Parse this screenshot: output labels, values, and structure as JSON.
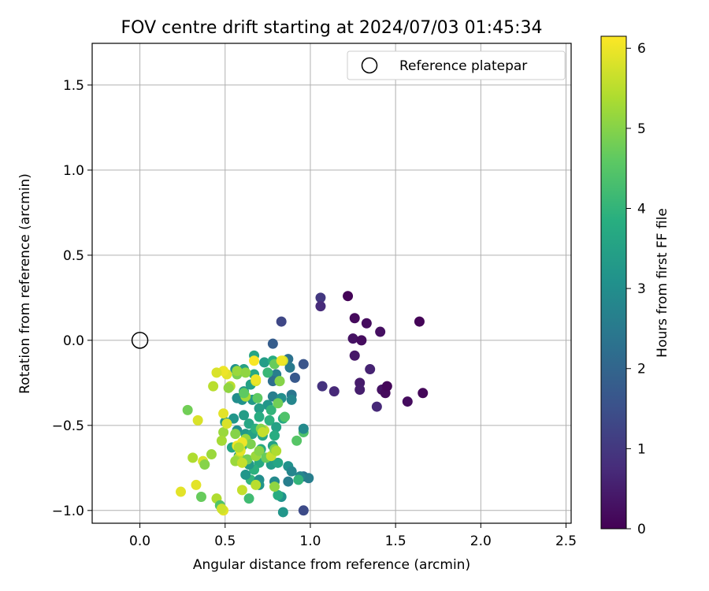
{
  "chart_data": {
    "type": "scatter",
    "title": "FOV centre drift starting at 2024/07/03 01:45:34",
    "xlabel": "Angular distance from reference (arcmin)",
    "ylabel": "Rotation from reference (arcmin)",
    "xlim": [
      -0.28,
      2.53
    ],
    "ylim": [
      -1.075,
      1.745
    ],
    "xticks": [
      0.0,
      0.5,
      1.0,
      1.5,
      2.0,
      2.5
    ],
    "xtick_labels": [
      "0.0",
      "0.5",
      "1.0",
      "1.5",
      "2.0",
      "2.5"
    ],
    "yticks": [
      -1.0,
      -0.5,
      0.0,
      0.5,
      1.0,
      1.5
    ],
    "ytick_labels": [
      "−1.0",
      "−0.5",
      "0.0",
      "0.5",
      "1.0",
      "1.5"
    ],
    "grid": true,
    "legend": {
      "placement": "top-right",
      "entries": [
        "Reference platepar"
      ]
    },
    "reference": {
      "x": 0.0,
      "y": 0.0
    },
    "colorbar": {
      "label": "Hours from first FF file",
      "colormap": "viridis",
      "range": [
        0,
        6.15
      ],
      "ticks": [
        0,
        1,
        2,
        3,
        4,
        5,
        6
      ],
      "tick_labels": [
        "0",
        "1",
        "2",
        "3",
        "4",
        "5",
        "6"
      ]
    },
    "points": [
      [
        1.22,
        0.26,
        0.05
      ],
      [
        1.26,
        0.13,
        0.15
      ],
      [
        1.33,
        0.1,
        0.2
      ],
      [
        1.64,
        0.11,
        0.05
      ],
      [
        1.41,
        0.05,
        0.25
      ],
      [
        1.25,
        0.01,
        0.3
      ],
      [
        1.3,
        0.0,
        0.2
      ],
      [
        1.26,
        -0.09,
        0.4
      ],
      [
        1.35,
        -0.17,
        0.6
      ],
      [
        1.29,
        -0.25,
        0.45
      ],
      [
        1.29,
        -0.29,
        0.5
      ],
      [
        1.42,
        -0.29,
        0.3
      ],
      [
        1.44,
        -0.31,
        0.15
      ],
      [
        1.45,
        -0.27,
        0.1
      ],
      [
        1.66,
        -0.31,
        0.1
      ],
      [
        1.57,
        -0.36,
        0.2
      ],
      [
        1.39,
        -0.39,
        0.7
      ],
      [
        1.14,
        -0.3,
        0.7
      ],
      [
        1.07,
        -0.27,
        0.9
      ],
      [
        1.06,
        0.25,
        1.0
      ],
      [
        1.06,
        0.2,
        0.75
      ],
      [
        0.83,
        0.11,
        1.3
      ],
      [
        0.78,
        -0.02,
        1.8
      ],
      [
        0.96,
        -0.14,
        1.6
      ],
      [
        0.87,
        -0.11,
        2.3
      ],
      [
        0.91,
        -0.22,
        1.7
      ],
      [
        0.88,
        -0.16,
        2.5
      ],
      [
        0.8,
        -0.2,
        2.6
      ],
      [
        0.78,
        -0.24,
        2.2
      ],
      [
        0.89,
        -0.32,
        2.4
      ],
      [
        0.89,
        -0.35,
        2.8
      ],
      [
        0.78,
        -0.33,
        2.6
      ],
      [
        0.83,
        -0.34,
        3.0
      ],
      [
        0.75,
        -0.38,
        3.2
      ],
      [
        0.7,
        -0.4,
        3.4
      ],
      [
        0.66,
        -0.35,
        3.3
      ],
      [
        0.6,
        -0.35,
        3.1
      ],
      [
        0.57,
        -0.34,
        3.0
      ],
      [
        0.65,
        -0.26,
        3.5
      ],
      [
        0.61,
        -0.3,
        3.3
      ],
      [
        0.56,
        -0.17,
        3.1
      ],
      [
        0.61,
        -0.17,
        3.5
      ],
      [
        0.67,
        -0.09,
        3.6
      ],
      [
        0.67,
        -0.2,
        3.7
      ],
      [
        0.73,
        -0.13,
        3.4
      ],
      [
        0.78,
        -0.12,
        3.8
      ],
      [
        0.75,
        -0.19,
        4.1
      ],
      [
        0.82,
        -0.24,
        4.4
      ],
      [
        0.77,
        -0.41,
        4.0
      ],
      [
        0.76,
        -0.47,
        3.9
      ],
      [
        0.84,
        -0.46,
        3.7
      ],
      [
        0.8,
        -0.51,
        3.5
      ],
      [
        0.7,
        -0.45,
        3.8
      ],
      [
        0.64,
        -0.49,
        3.6
      ],
      [
        0.61,
        -0.44,
        3.4
      ],
      [
        0.55,
        -0.46,
        3.2
      ],
      [
        0.57,
        -0.53,
        3.0
      ],
      [
        0.5,
        -0.48,
        3.3
      ],
      [
        0.62,
        -0.55,
        3.3
      ],
      [
        0.66,
        -0.55,
        3.5
      ],
      [
        0.68,
        -0.52,
        3.9
      ],
      [
        0.72,
        -0.56,
        3.6
      ],
      [
        0.79,
        -0.56,
        3.8
      ],
      [
        0.78,
        -0.62,
        3.5
      ],
      [
        0.71,
        -0.64,
        3.7
      ],
      [
        0.7,
        -0.72,
        3.7
      ],
      [
        0.67,
        -0.76,
        3.9
      ],
      [
        0.65,
        -0.82,
        4.0
      ],
      [
        0.62,
        -0.79,
        3.2
      ],
      [
        0.64,
        -0.73,
        3.3
      ],
      [
        0.58,
        -0.68,
        3.3
      ],
      [
        0.54,
        -0.63,
        3.6
      ],
      [
        0.6,
        -0.62,
        3.7
      ],
      [
        0.77,
        -0.73,
        3.4
      ],
      [
        0.81,
        -0.72,
        3.6
      ],
      [
        0.87,
        -0.74,
        3.1
      ],
      [
        0.89,
        -0.77,
        2.8
      ],
      [
        0.96,
        -0.8,
        2.3
      ],
      [
        0.99,
        -0.81,
        2.6
      ],
      [
        0.94,
        -0.8,
        2.8
      ],
      [
        0.87,
        -0.83,
        2.6
      ],
      [
        0.79,
        -0.83,
        2.9
      ],
      [
        0.7,
        -0.82,
        3.0
      ],
      [
        0.7,
        -0.85,
        3.2
      ],
      [
        0.83,
        -0.92,
        3.1
      ],
      [
        0.81,
        -0.91,
        3.8
      ],
      [
        0.96,
        -1.0,
        1.4
      ],
      [
        0.84,
        -1.01,
        3.2
      ],
      [
        0.93,
        -0.82,
        4.0
      ],
      [
        0.92,
        -0.59,
        4.5
      ],
      [
        0.96,
        -0.54,
        4.4
      ],
      [
        0.96,
        -0.52,
        2.9
      ],
      [
        0.85,
        -0.45,
        4.4
      ],
      [
        0.81,
        -0.37,
        4.8
      ],
      [
        0.82,
        -0.24,
        5.0
      ],
      [
        0.84,
        -0.12,
        5.7
      ],
      [
        0.79,
        -0.14,
        4.7
      ],
      [
        0.68,
        -0.24,
        5.8
      ],
      [
        0.69,
        -0.34,
        4.6
      ],
      [
        0.62,
        -0.33,
        5.3
      ],
      [
        0.61,
        -0.31,
        4.6
      ],
      [
        0.57,
        -0.2,
        4.9
      ],
      [
        0.57,
        -0.18,
        5.2
      ],
      [
        0.62,
        -0.19,
        5.1
      ],
      [
        0.53,
        -0.27,
        5.5
      ],
      [
        0.51,
        -0.2,
        5.9
      ],
      [
        0.49,
        -0.18,
        6.0
      ],
      [
        0.45,
        -0.19,
        5.8
      ],
      [
        0.43,
        -0.27,
        5.5
      ],
      [
        0.28,
        -0.41,
        4.8
      ],
      [
        0.34,
        -0.47,
        5.8
      ],
      [
        0.49,
        -0.43,
        5.9
      ],
      [
        0.49,
        -0.54,
        5.2
      ],
      [
        0.51,
        -0.49,
        5.8
      ],
      [
        0.56,
        -0.55,
        5.0
      ],
      [
        0.62,
        -0.58,
        5.2
      ],
      [
        0.65,
        -0.61,
        4.9
      ],
      [
        0.59,
        -0.64,
        5.0
      ],
      [
        0.58,
        -0.69,
        5.5
      ],
      [
        0.63,
        -0.7,
        4.8
      ],
      [
        0.68,
        -0.68,
        5.2
      ],
      [
        0.7,
        -0.65,
        5.0
      ],
      [
        0.74,
        -0.69,
        4.7
      ],
      [
        0.77,
        -0.68,
        5.6
      ],
      [
        0.79,
        -0.64,
        4.9
      ],
      [
        0.73,
        -0.53,
        5.6
      ],
      [
        0.71,
        -0.52,
        5.0
      ],
      [
        0.8,
        -0.65,
        5.4
      ],
      [
        0.79,
        -0.86,
        5.1
      ],
      [
        0.68,
        -0.85,
        5.5
      ],
      [
        0.64,
        -0.93,
        4.2
      ],
      [
        0.6,
        -0.88,
        5.6
      ],
      [
        0.56,
        -0.71,
        5.2
      ],
      [
        0.6,
        -0.72,
        5.6
      ],
      [
        0.59,
        -0.65,
        5.9
      ],
      [
        0.57,
        -0.62,
        6.0
      ],
      [
        0.48,
        -0.59,
        5.3
      ],
      [
        0.42,
        -0.67,
        5.2
      ],
      [
        0.31,
        -0.69,
        5.4
      ],
      [
        0.37,
        -0.71,
        5.8
      ],
      [
        0.38,
        -0.73,
        5.0
      ],
      [
        0.33,
        -0.85,
        5.9
      ],
      [
        0.36,
        -0.92,
        4.7
      ],
      [
        0.24,
        -0.89,
        5.9
      ],
      [
        0.45,
        -0.93,
        5.4
      ],
      [
        0.47,
        -0.97,
        4.4
      ],
      [
        0.49,
        -1.0,
        5.9
      ],
      [
        0.48,
        -0.99,
        5.7
      ],
      [
        0.6,
        -0.6,
        6.0
      ],
      [
        0.52,
        -0.28,
        5.1
      ],
      [
        0.58,
        -0.63,
        5.4
      ],
      [
        0.72,
        -0.54,
        5.6
      ],
      [
        0.68,
        -0.23,
        6.0
      ],
      [
        0.83,
        -0.12,
        6.0
      ],
      [
        0.67,
        -0.12,
        6.1
      ]
    ]
  }
}
